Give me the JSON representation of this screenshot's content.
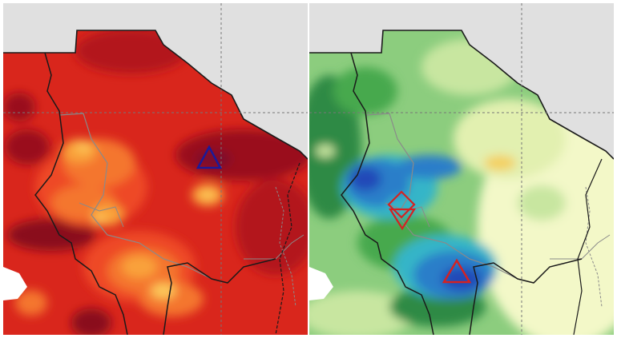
{
  "maps": [
    {
      "id": "left",
      "palette": [
        "#7a0a1e",
        "#b3151c",
        "#d9261c",
        "#ee4a25",
        "#f4762d",
        "#f9a23a",
        "#fcc85a"
      ],
      "markers": [
        {
          "shape": "triangle-up",
          "color": "#1a1a9a"
        }
      ]
    },
    {
      "id": "right",
      "palette": [
        "#f3f8c8",
        "#c8e6a0",
        "#8ccd7e",
        "#47a94e",
        "#2e8a44",
        "#36b5c8",
        "#2a7ec9",
        "#2448b8",
        "#f4d060"
      ],
      "markers": [
        {
          "shape": "diamond",
          "color": "#d42222"
        },
        {
          "shape": "triangle-down",
          "color": "#d42222"
        },
        {
          "shape": "triangle-up",
          "color": "#d42222"
        }
      ]
    }
  ],
  "colors": {
    "background": "#e0e0e0",
    "state_border": "#1a1a1a",
    "municipal_border": "#8a8a8a",
    "grid_line": "#777777"
  }
}
